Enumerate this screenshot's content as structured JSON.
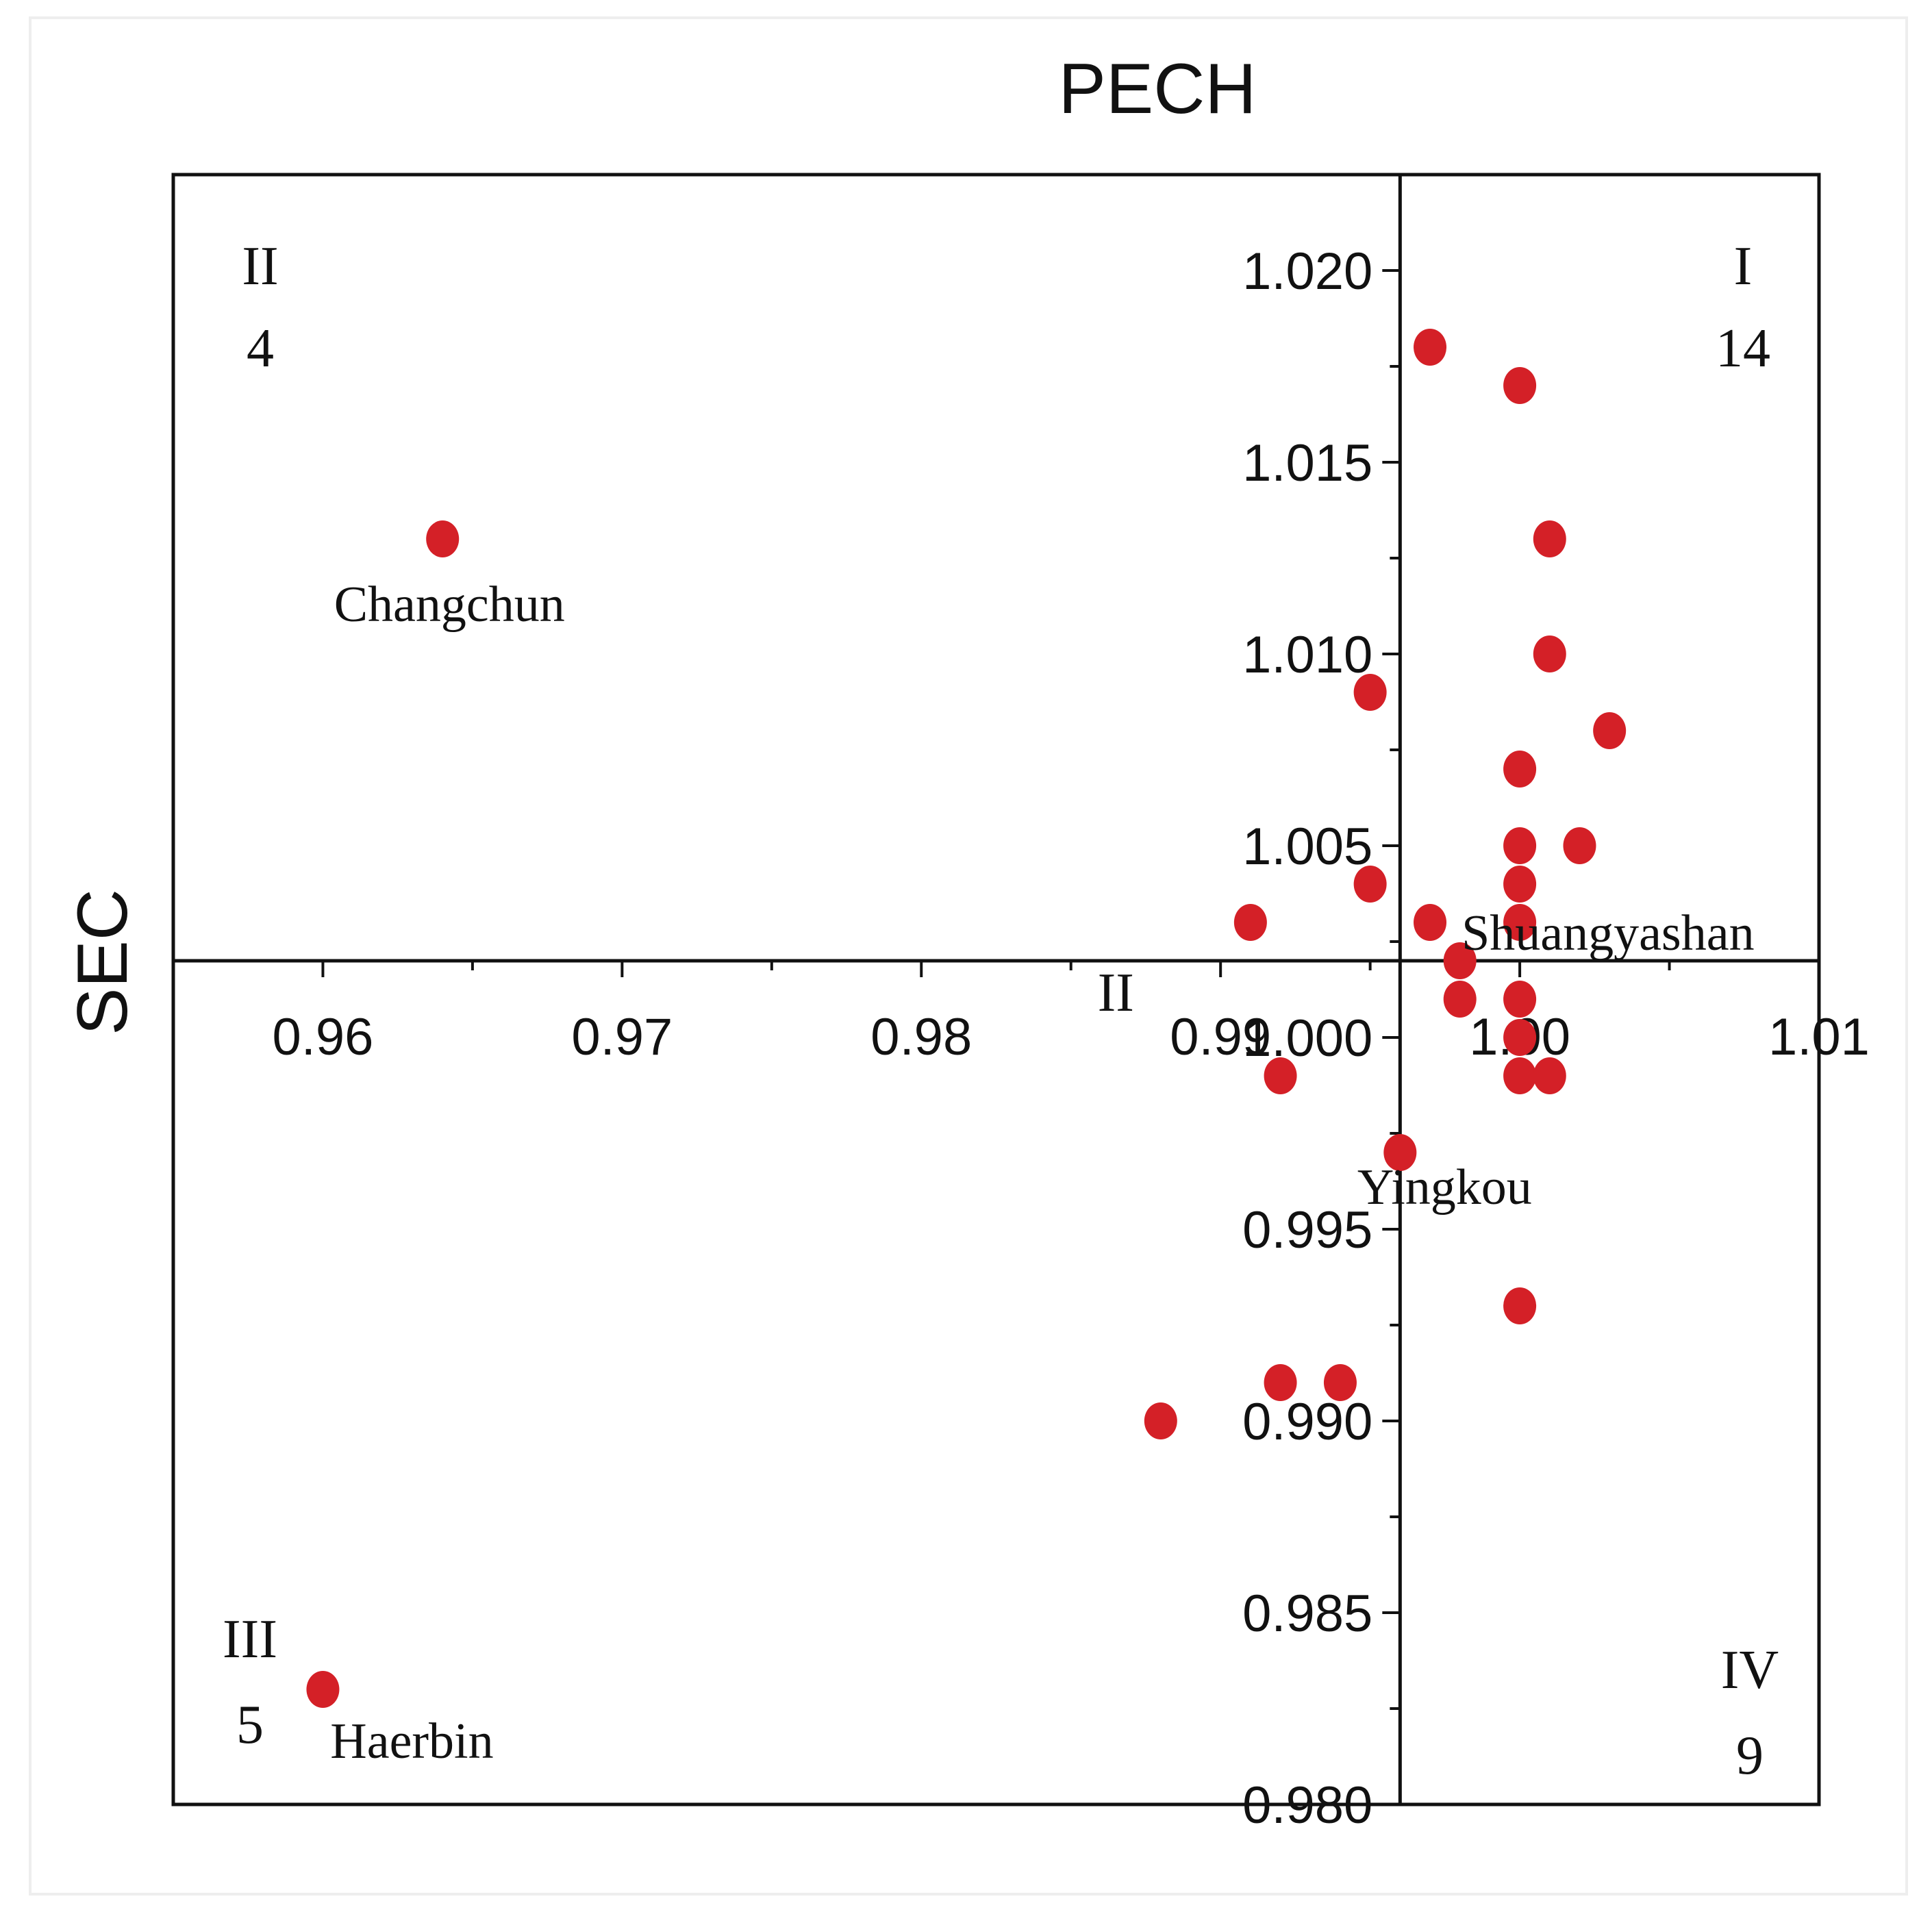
{
  "chart_data": {
    "type": "scatter",
    "title": "",
    "xlabel": "PECH",
    "ylabel": "SEC",
    "xlim": [
      0.955,
      1.01
    ],
    "ylim": [
      0.98,
      1.0225
    ],
    "x_ticks": [
      {
        "value": 0.96,
        "label": "0.96"
      },
      {
        "value": 0.97,
        "label": "0.97"
      },
      {
        "value": 0.98,
        "label": "0.98"
      },
      {
        "value": 0.99,
        "label": "0.99"
      },
      {
        "value": 1.0,
        "label": "1.00"
      },
      {
        "value": 1.01,
        "label": "1.01"
      }
    ],
    "y_ticks": [
      {
        "value": 0.98,
        "label": "0.980"
      },
      {
        "value": 0.985,
        "label": "0.985"
      },
      {
        "value": 0.99,
        "label": "0.990"
      },
      {
        "value": 0.995,
        "label": "0.995"
      },
      {
        "value": 1.0,
        "label": "1.000"
      },
      {
        "value": 1.005,
        "label": "1.005"
      },
      {
        "value": 1.01,
        "label": "1.010"
      },
      {
        "value": 1.015,
        "label": "1.015"
      },
      {
        "value": 1.02,
        "label": "1.020"
      }
    ],
    "axes_cross": {
      "x": 0.996,
      "y": 1.002
    },
    "grid": false,
    "point_color": "#d42027",
    "points": [
      {
        "x": 0.964,
        "y": 1.013,
        "label": "Changchun"
      },
      {
        "x": 0.96,
        "y": 0.983,
        "label": "Haerbin"
      },
      {
        "x": 0.997,
        "y": 1.018
      },
      {
        "x": 1.0,
        "y": 1.017
      },
      {
        "x": 1.001,
        "y": 1.013
      },
      {
        "x": 1.001,
        "y": 1.01
      },
      {
        "x": 0.995,
        "y": 1.009
      },
      {
        "x": 1.003,
        "y": 1.008
      },
      {
        "x": 1.0,
        "y": 1.007
      },
      {
        "x": 1.0,
        "y": 1.005
      },
      {
        "x": 1.002,
        "y": 1.005
      },
      {
        "x": 0.995,
        "y": 1.004
      },
      {
        "x": 1.0,
        "y": 1.004
      },
      {
        "x": 0.991,
        "y": 1.003
      },
      {
        "x": 0.997,
        "y": 1.003
      },
      {
        "x": 1.0,
        "y": 1.003,
        "label": "Shuangyashan"
      },
      {
        "x": 0.998,
        "y": 1.002
      },
      {
        "x": 0.998,
        "y": 1.001
      },
      {
        "x": 1.0,
        "y": 1.001
      },
      {
        "x": 1.0,
        "y": 1.0
      },
      {
        "x": 0.992,
        "y": 0.999
      },
      {
        "x": 1.0,
        "y": 0.999
      },
      {
        "x": 1.001,
        "y": 0.999
      },
      {
        "x": 0.996,
        "y": 0.997,
        "label": "Yingkou"
      },
      {
        "x": 1.0,
        "y": 0.993
      },
      {
        "x": 0.992,
        "y": 0.991
      },
      {
        "x": 0.994,
        "y": 0.991
      },
      {
        "x": 0.988,
        "y": 0.99
      }
    ],
    "quadrants": [
      {
        "numeral": "I",
        "count": "14",
        "corner": "top-right"
      },
      {
        "numeral": "II",
        "count": "4",
        "corner": "top-left"
      },
      {
        "numeral": "III",
        "count": "5",
        "corner": "bottom-left"
      },
      {
        "numeral": "IV",
        "count": "9",
        "corner": "bottom-right"
      }
    ],
    "extra_annotations": [
      {
        "text": "II",
        "x": 0.9865,
        "y": 1.0007
      }
    ]
  }
}
